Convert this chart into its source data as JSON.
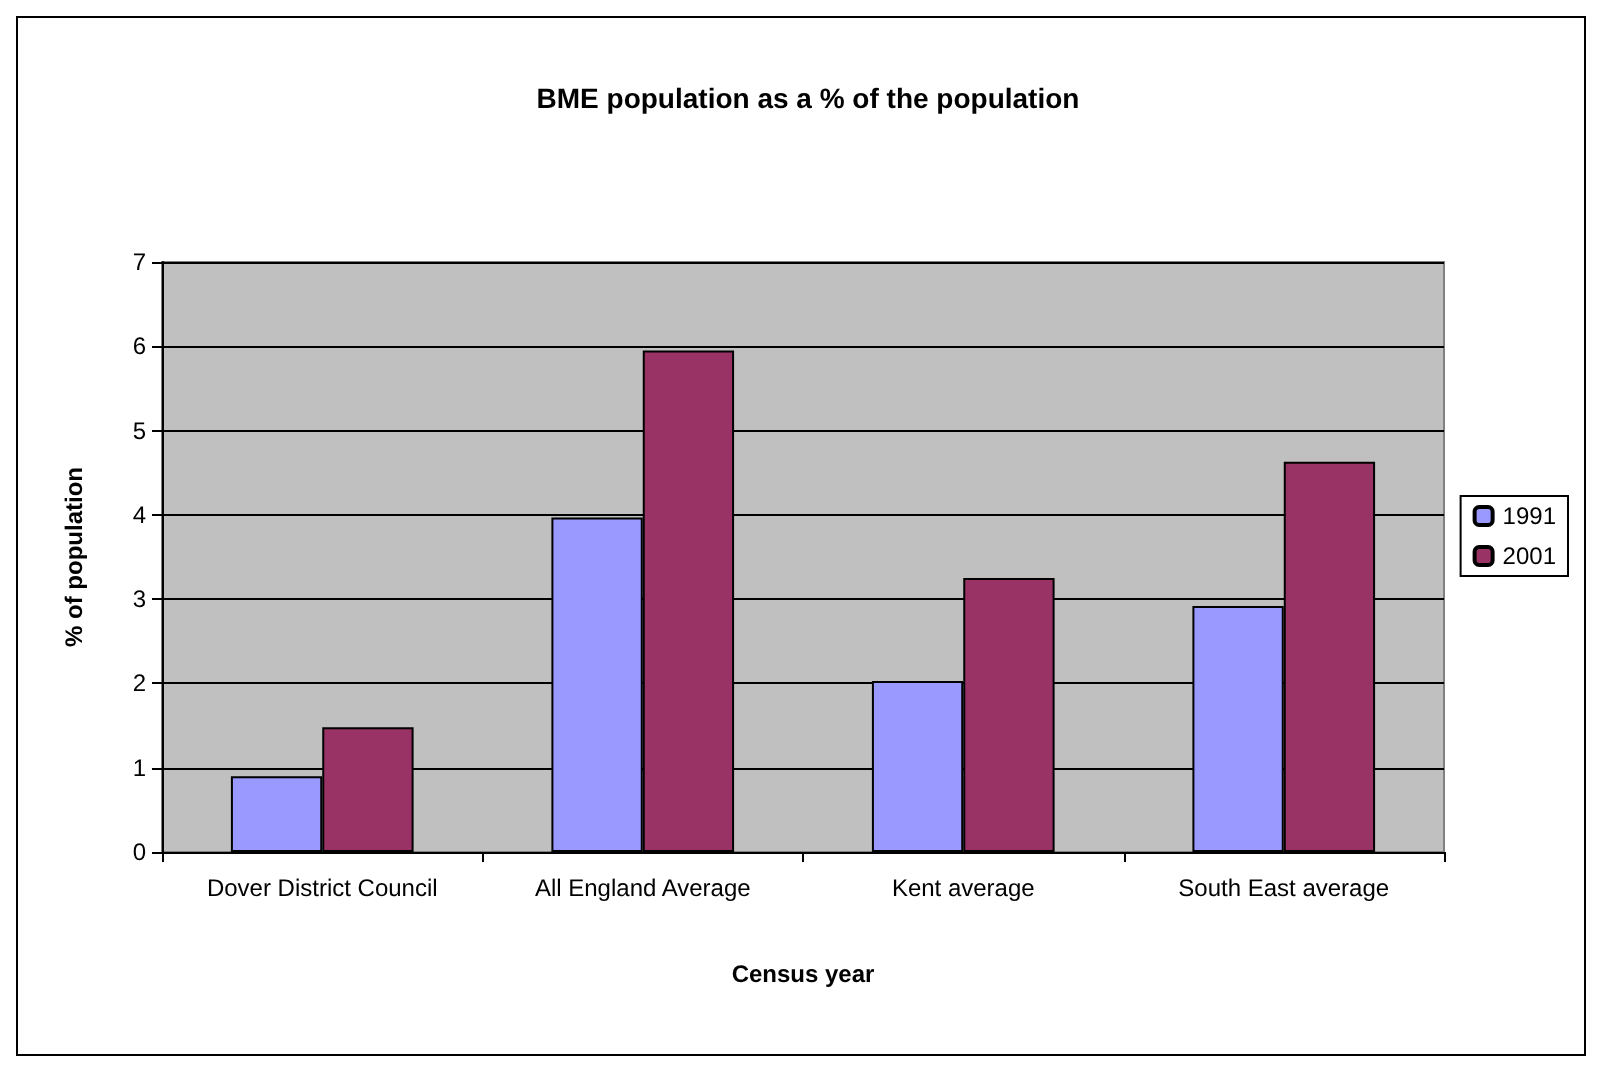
{
  "chart_data": {
    "type": "bar",
    "title": "BME population as a % of the population",
    "xlabel": "Census year",
    "ylabel": "% of population",
    "categories": [
      "Dover District Council",
      "All England Average",
      "Kent average",
      "South East average"
    ],
    "series": [
      {
        "name": "1991",
        "color": "#9999ff",
        "values": [
          0.9,
          3.97,
          2.03,
          2.92
        ]
      },
      {
        "name": "2001",
        "color": "#993366",
        "values": [
          1.48,
          5.95,
          3.25,
          4.63
        ]
      }
    ],
    "ylim": [
      0,
      7
    ],
    "yticks": [
      0,
      1,
      2,
      3,
      4,
      5,
      6,
      7
    ],
    "grid": "y",
    "legend": "right"
  }
}
